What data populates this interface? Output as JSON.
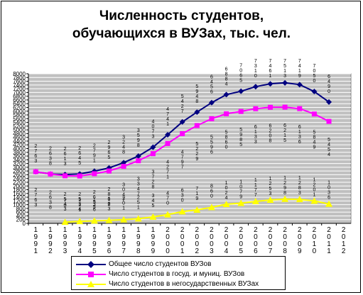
{
  "chart_data": {
    "type": "line",
    "title": [
      "Численность студентов,",
      "обучающихся в ВУЗах, тыс. чел."
    ],
    "categories": [
      "1991",
      "1992",
      "1993",
      "1994",
      "1995",
      "1996",
      "1997",
      "1998",
      "1999",
      "2000",
      "2001",
      "2002",
      "2003",
      "2004",
      "2005",
      "2006",
      "2007",
      "2008",
      "2009",
      "2010",
      "2011",
      "2012"
    ],
    "category_labels": [
      [
        "1",
        "9",
        "9",
        "1"
      ],
      [
        "1",
        "9",
        "9",
        "2"
      ],
      [
        "1",
        "9",
        "9",
        "3"
      ],
      [
        "1",
        "9",
        "9",
        "4"
      ],
      [
        "1",
        "9",
        "9",
        "5"
      ],
      [
        "1",
        "9",
        "9",
        "6"
      ],
      [
        "1",
        "9",
        "9",
        "7"
      ],
      [
        "1",
        "9",
        "9",
        "8"
      ],
      [
        "1",
        "9",
        "9",
        "9"
      ],
      [
        "2",
        "0",
        "0",
        "0"
      ],
      [
        "2",
        "0",
        "0",
        "1"
      ],
      [
        "2",
        "0",
        "0",
        "2"
      ],
      [
        "2",
        "0",
        "0",
        "3"
      ],
      [
        "2",
        "0",
        "0",
        "4"
      ],
      [
        "2",
        "0",
        "0",
        "5"
      ],
      [
        "2",
        "0",
        "0",
        "6"
      ],
      [
        "2",
        "0",
        "0",
        "7"
      ],
      [
        "2",
        "0",
        "0",
        "8"
      ],
      [
        "2",
        "0",
        "0",
        "9"
      ],
      [
        "2",
        "0",
        "1",
        "0"
      ],
      [
        "2",
        "0",
        "1",
        "1"
      ],
      [
        "2",
        "0",
        "1",
        "2"
      ]
    ],
    "yticks": [
      "0",
      "200",
      "400",
      "600",
      "800",
      "1000",
      "1200",
      "1400",
      "1600",
      "1800",
      "2000",
      "2200",
      "2400",
      "2600",
      "2800",
      "3000",
      "3200",
      "3400",
      "3600",
      "3800",
      "4000",
      "4200",
      "4400",
      "4600",
      "4800",
      "5000",
      "5200",
      "5400",
      "5600",
      "5800",
      "6000",
      "6200",
      "6400",
      "6600",
      "6800",
      "7000",
      "7200",
      "7400",
      "7600",
      "7800",
      "8000"
    ],
    "ylim": [
      0,
      8000
    ],
    "grid": true,
    "plot_background": "#c0c0c0",
    "series": [
      {
        "name": "Общее число студентов ВУЗов",
        "color": "#000080",
        "marker": "diamond",
        "values": [
          2763,
          2638,
          2613,
          2645,
          2791,
          2965,
          3248,
          3598,
          4073,
          4741,
          5427,
          5948,
          6456,
          6884,
          7065,
          7310,
          7461,
          7513,
          7419,
          7050,
          6490,
          null
        ]
      },
      {
        "name": "Число студентов в госуд. и муниц. ВУЗов",
        "color": "#ff00ff",
        "marker": "square",
        "values": [
          2763,
          2638,
          2543,
          2534,
          2655,
          2802,
          3047,
          3347,
          3728,
          4271,
          4797,
          5229,
          5596,
          5860,
          5985,
          6133,
          6208,
          6215,
          6136,
          5849,
          5454,
          null
        ]
      },
      {
        "name": "Число студентов в негосударственных ВУЗах",
        "color": "#ffff00",
        "marker": "triangle",
        "values": [
          null,
          null,
          70,
          111,
          136,
          163,
          201,
          251,
          345,
          470,
          630,
          719,
          860,
          1024,
          1079,
          1177,
          1253,
          1298,
          1283,
          1201,
          1036,
          null
        ]
      }
    ],
    "data_labels": {
      "total": [
        [
          "2",
          "7",
          "6",
          "3"
        ],
        [
          "2",
          "6",
          "3",
          "8"
        ],
        [
          "2",
          "6",
          "1",
          "3"
        ],
        [
          "2",
          "6",
          "4",
          "5"
        ],
        [
          "2",
          "7",
          "9",
          "1"
        ],
        [
          "2",
          "9",
          "6",
          "5"
        ],
        [
          "3",
          "2",
          "4",
          "8"
        ],
        [
          "3",
          "5",
          "9",
          "8"
        ],
        [
          "4",
          "0",
          "7",
          "3"
        ],
        [
          "4",
          "7",
          "4",
          "1"
        ],
        [
          "5",
          "4",
          "2",
          "7"
        ],
        [
          "5",
          "9",
          "4",
          "8"
        ],
        [
          "6",
          "4",
          "5",
          "6"
        ],
        [
          "6",
          "8",
          "8",
          "4"
        ],
        [
          "7",
          "0",
          "6",
          "5"
        ],
        [
          "7",
          "3",
          "1",
          "0"
        ],
        [
          "7",
          "4",
          "6",
          "1"
        ],
        [
          "7",
          "5",
          "1",
          "3"
        ],
        [
          "7",
          "4",
          "1",
          "9"
        ],
        [
          "7",
          "0",
          "5",
          "0"
        ],
        [
          "6",
          "4",
          "9",
          "0"
        ]
      ],
      "state": [
        [
          "2",
          "7",
          "6",
          "3"
        ],
        [
          "2",
          "6",
          "3",
          "8"
        ],
        [
          "2",
          "5",
          "4",
          "3"
        ],
        [
          "2",
          "5",
          "3",
          "4"
        ],
        [
          "2",
          "6",
          "5",
          "5"
        ],
        [
          "2",
          "8",
          "0",
          "2"
        ],
        [
          "3",
          "0",
          "4",
          "7"
        ],
        [
          "3",
          "3",
          "4",
          "7"
        ],
        [
          "3",
          "7",
          "2",
          "8"
        ],
        [
          "4",
          "2",
          "7",
          "1"
        ],
        [
          "4",
          "7",
          "9",
          "7"
        ],
        [
          "5",
          "2",
          "2",
          "9"
        ],
        [
          "5",
          "5",
          "9",
          "6"
        ],
        [
          "5",
          "8",
          "6",
          "0"
        ],
        [
          "5",
          "9",
          "8",
          "5"
        ],
        [
          "6",
          "1",
          "3",
          "3"
        ],
        [
          "6",
          "2",
          "0",
          "8"
        ],
        [
          "6",
          "2",
          "1",
          "5"
        ],
        [
          "6",
          "1",
          "3",
          "6"
        ],
        [
          "5",
          "8",
          "4",
          "9"
        ],
        [
          "5",
          "4",
          "5",
          "4"
        ]
      ],
      "private": [
        null,
        null,
        [
          "7",
          "0"
        ],
        [
          "1",
          "1",
          "1"
        ],
        [
          "1",
          "3",
          "6"
        ],
        [
          "1",
          "6",
          "3"
        ],
        [
          "2",
          "0",
          "1"
        ],
        [
          "2",
          "5",
          "1"
        ],
        [
          "3",
          "4",
          "5"
        ],
        [
          "4",
          "7",
          "0"
        ],
        [
          "6",
          "3",
          "0"
        ],
        [
          "7",
          "1",
          "9"
        ],
        [
          "8",
          "6",
          "0"
        ],
        [
          "1",
          "0",
          "2",
          "4"
        ],
        [
          "1",
          "0",
          "7",
          "9"
        ],
        [
          "1",
          "1",
          "7",
          "7"
        ],
        [
          "1",
          "2",
          "5",
          "3"
        ],
        [
          "1",
          "2",
          "9",
          "8"
        ],
        [
          "1",
          "2",
          "8",
          "3"
        ],
        [
          "1",
          "2",
          "0",
          "1"
        ],
        [
          "1",
          "0",
          "3",
          "6"
        ]
      ]
    }
  }
}
